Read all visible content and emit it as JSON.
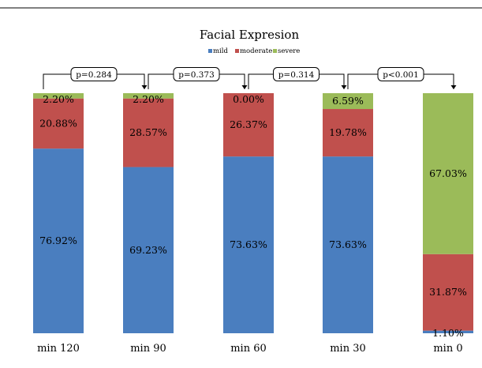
{
  "chart_data": {
    "type": "bar",
    "stacked": true,
    "title": "Facial Expresion",
    "categories": [
      "min 120",
      "min 90",
      "min 60",
      "min 30",
      "min 0"
    ],
    "series": [
      {
        "name": "mild",
        "color": "#4a7ebf",
        "values": [
          76.92,
          69.23,
          73.63,
          73.63,
          1.1
        ],
        "labels": [
          "76.92%",
          "69.23%",
          "73.63%",
          "73.63%",
          "1.10%"
        ]
      },
      {
        "name": "moderate",
        "color": "#c0504d",
        "values": [
          20.88,
          28.57,
          26.37,
          19.78,
          31.87
        ],
        "labels": [
          "20.88%",
          "28.57%",
          "26.37%",
          "19.78%",
          "31.87%"
        ]
      },
      {
        "name": "severe",
        "color": "#9bbb59",
        "values": [
          2.2,
          2.2,
          0.0,
          6.59,
          67.03
        ],
        "labels": [
          "2.20%",
          "2.20%",
          "0.00%",
          "6.59%",
          "67.03%"
        ]
      }
    ],
    "ylim": [
      0,
      100
    ],
    "legend_position": "top-center",
    "grid": false,
    "comparisons": [
      {
        "label": "p=0.284",
        "from": "min 120",
        "to": "min 90"
      },
      {
        "label": "p=0.373",
        "from": "min 90",
        "to": "min 60"
      },
      {
        "label": "p=0.314",
        "from": "min 60",
        "to": "min 30"
      },
      {
        "label": "p<0.001",
        "from": "min 30",
        "to": "min 0"
      }
    ]
  }
}
